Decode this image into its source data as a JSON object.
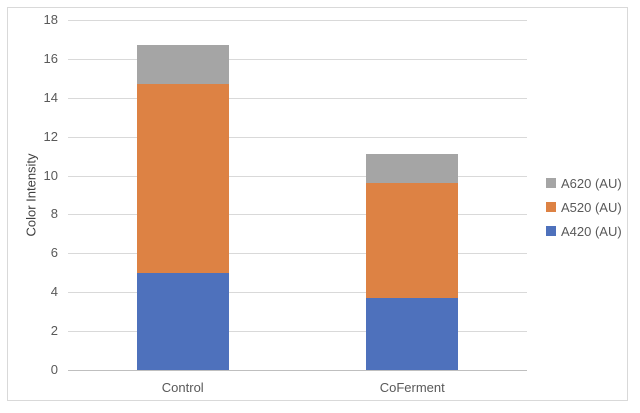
{
  "chart_data": {
    "type": "bar",
    "stacked": true,
    "title": "",
    "xlabel": "",
    "ylabel": "Color Intensity",
    "categories": [
      "Control",
      "CoFerment"
    ],
    "series": [
      {
        "name": "A420 (AU)",
        "color": "#4E71BC",
        "values": [
          5.0,
          3.7
        ]
      },
      {
        "name": "A520 (AU)",
        "color": "#DD8244",
        "values": [
          9.7,
          5.9
        ]
      },
      {
        "name": "A620 (AU)",
        "color": "#A5A5A5",
        "values": [
          2.0,
          1.5
        ]
      }
    ],
    "stack_totals": [
      16.7,
      11.1
    ],
    "ylim": [
      0,
      18
    ],
    "yticks": [
      0,
      2,
      4,
      6,
      8,
      10,
      12,
      14,
      16,
      18
    ],
    "grid": true,
    "legend_position": "right",
    "legend_order_top_to_bottom": [
      "A620 (AU)",
      "A520 (AU)",
      "A420 (AU)"
    ]
  },
  "colors": {
    "background": "#FFFFFF",
    "frame_border": "#D9D9D9",
    "gridline": "#D9D9D9",
    "axis_line": "#BFBFBF",
    "tick_text": "#595959",
    "axis_title_text": "#404040"
  }
}
